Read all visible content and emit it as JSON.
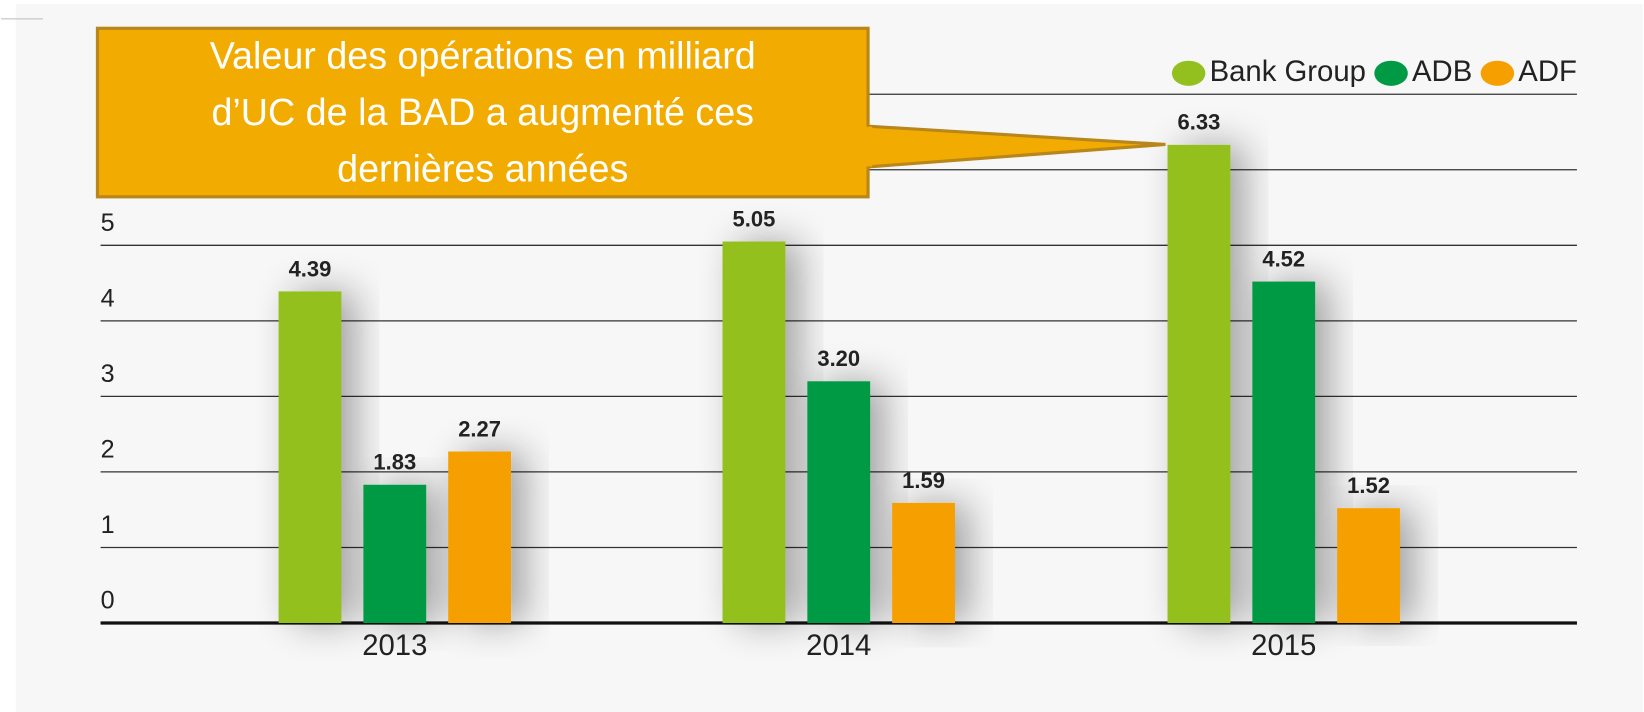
{
  "chart_data": {
    "type": "bar",
    "annotation": [
      "Valeur des opérations en milliard",
      "d’UC de la BAD a augmenté ces",
      "dernières années"
    ],
    "categories": [
      "2013",
      "2014",
      "2015"
    ],
    "series": [
      {
        "name": "Bank Group",
        "color": "#93c01f",
        "values": [
          4.39,
          5.05,
          6.33
        ],
        "value_labels": [
          "4.39",
          "5.05",
          "6.33"
        ]
      },
      {
        "name": "ADB",
        "color": "#009a44",
        "values": [
          1.83,
          3.2,
          4.52
        ],
        "value_labels": [
          "1.83",
          "3.20",
          "4.52"
        ]
      },
      {
        "name": "ADF",
        "color": "#f5a000",
        "values": [
          2.27,
          1.59,
          1.52
        ],
        "value_labels": [
          "2.27",
          "1.59",
          "1.52"
        ]
      }
    ],
    "ylim": [
      0,
      7
    ],
    "yticks": [
      0,
      1,
      2,
      3,
      4,
      5,
      6,
      7
    ],
    "grid": true,
    "legend": "top-right"
  }
}
